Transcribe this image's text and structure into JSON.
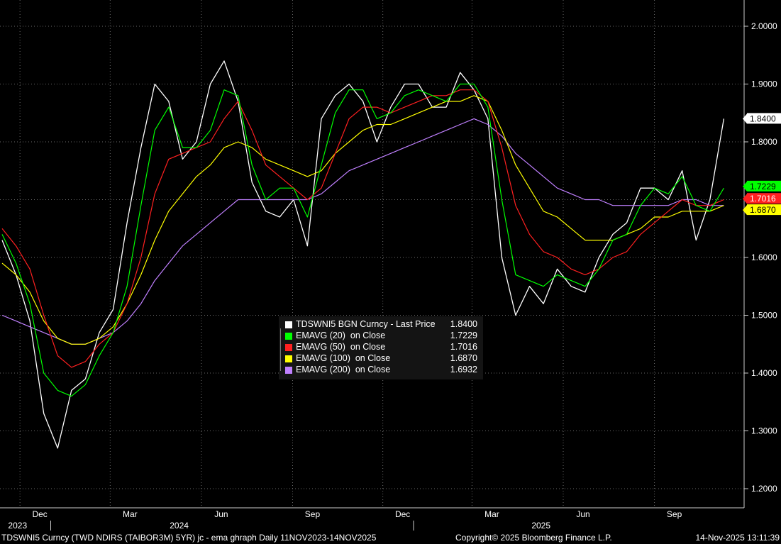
{
  "chart_data": {
    "type": "line",
    "title": "TDSWNI5 Curncy (TWD NDIRS (TAIBOR3M) 5YR) jc - ema ghraph Daily 11NOV2023-14NOV2025",
    "xlabel": "",
    "ylabel": "",
    "ylim": [
      1.18,
      2.04
    ],
    "yticks": [
      "1.2000",
      "1.3000",
      "1.4000",
      "1.5000",
      "1.6000",
      "1.7000",
      "1.8000",
      "1.9000",
      "2.0000"
    ],
    "x_tick_labels": [
      "Dec",
      "Mar",
      "Jun",
      "Sep",
      "Dec",
      "Mar",
      "Jun",
      "Sep"
    ],
    "x_year_labels": [
      "2023",
      "2024",
      "2025"
    ],
    "grid": true,
    "legend_position": "center",
    "x": [
      "2023-11-13",
      "2023-11-27",
      "2023-12-11",
      "2023-12-25",
      "2024-01-08",
      "2024-01-22",
      "2024-02-05",
      "2024-02-19",
      "2024-03-04",
      "2024-03-18",
      "2024-04-01",
      "2024-04-15",
      "2024-04-29",
      "2024-05-13",
      "2024-05-27",
      "2024-06-10",
      "2024-06-24",
      "2024-07-08",
      "2024-07-22",
      "2024-08-05",
      "2024-08-19",
      "2024-09-02",
      "2024-09-16",
      "2024-09-30",
      "2024-10-14",
      "2024-10-28",
      "2024-11-11",
      "2024-11-25",
      "2024-12-09",
      "2024-12-23",
      "2025-01-06",
      "2025-01-20",
      "2025-02-03",
      "2025-02-17",
      "2025-03-03",
      "2025-03-17",
      "2025-03-31",
      "2025-04-14",
      "2025-04-28",
      "2025-05-12",
      "2025-05-26",
      "2025-06-09",
      "2025-06-23",
      "2025-07-07",
      "2025-07-21",
      "2025-08-04",
      "2025-08-18",
      "2025-09-01",
      "2025-09-15",
      "2025-09-29",
      "2025-10-13",
      "2025-10-27",
      "2025-11-10"
    ],
    "series": [
      {
        "name": "TDSWNI5 BGN Curncy - Last Price",
        "color": "#ffffff",
        "last": "1.8400",
        "values": [
          1.63,
          1.57,
          1.49,
          1.33,
          1.27,
          1.37,
          1.39,
          1.47,
          1.51,
          1.66,
          1.79,
          1.9,
          1.87,
          1.77,
          1.8,
          1.9,
          1.94,
          1.87,
          1.73,
          1.68,
          1.67,
          1.7,
          1.62,
          1.84,
          1.88,
          1.9,
          1.87,
          1.8,
          1.86,
          1.9,
          1.9,
          1.86,
          1.86,
          1.92,
          1.89,
          1.84,
          1.6,
          1.5,
          1.55,
          1.52,
          1.58,
          1.55,
          1.54,
          1.6,
          1.64,
          1.66,
          1.72,
          1.72,
          1.7,
          1.75,
          1.63,
          1.7,
          1.84
        ]
      },
      {
        "name": "EMAVG (20)  on Close",
        "color": "#00ff00",
        "last": "1.7229",
        "values": [
          1.64,
          1.59,
          1.52,
          1.4,
          1.37,
          1.36,
          1.38,
          1.43,
          1.47,
          1.55,
          1.69,
          1.82,
          1.86,
          1.79,
          1.79,
          1.82,
          1.89,
          1.88,
          1.76,
          1.7,
          1.72,
          1.72,
          1.67,
          1.76,
          1.85,
          1.89,
          1.89,
          1.84,
          1.85,
          1.88,
          1.89,
          1.88,
          1.87,
          1.9,
          1.9,
          1.86,
          1.7,
          1.57,
          1.56,
          1.55,
          1.57,
          1.56,
          1.55,
          1.58,
          1.63,
          1.64,
          1.69,
          1.72,
          1.71,
          1.74,
          1.69,
          1.68,
          1.72
        ]
      },
      {
        "name": "EMAVG (50)  on Close",
        "color": "#ff2020",
        "last": "1.7016",
        "values": [
          1.65,
          1.62,
          1.58,
          1.5,
          1.43,
          1.41,
          1.42,
          1.45,
          1.47,
          1.52,
          1.6,
          1.71,
          1.77,
          1.78,
          1.79,
          1.8,
          1.84,
          1.87,
          1.82,
          1.76,
          1.74,
          1.72,
          1.7,
          1.72,
          1.78,
          1.84,
          1.86,
          1.86,
          1.85,
          1.86,
          1.87,
          1.88,
          1.88,
          1.89,
          1.89,
          1.87,
          1.79,
          1.69,
          1.64,
          1.61,
          1.6,
          1.58,
          1.57,
          1.58,
          1.6,
          1.61,
          1.64,
          1.66,
          1.68,
          1.7,
          1.69,
          1.69,
          1.7
        ]
      },
      {
        "name": "EMAVG (100)  on Close",
        "color": "#ffff00",
        "last": "1.6870",
        "values": [
          1.59,
          1.57,
          1.54,
          1.49,
          1.46,
          1.45,
          1.45,
          1.46,
          1.48,
          1.52,
          1.57,
          1.63,
          1.68,
          1.71,
          1.74,
          1.76,
          1.79,
          1.8,
          1.79,
          1.77,
          1.76,
          1.75,
          1.74,
          1.75,
          1.78,
          1.8,
          1.82,
          1.83,
          1.83,
          1.84,
          1.85,
          1.86,
          1.87,
          1.87,
          1.88,
          1.87,
          1.82,
          1.76,
          1.72,
          1.68,
          1.67,
          1.65,
          1.63,
          1.63,
          1.63,
          1.64,
          1.65,
          1.67,
          1.67,
          1.68,
          1.68,
          1.68,
          1.69
        ]
      },
      {
        "name": "EMAVG (200)  on Close",
        "color": "#c080ff",
        "last": "1.6932",
        "values": [
          1.5,
          1.49,
          1.48,
          1.47,
          1.46,
          1.45,
          1.45,
          1.46,
          1.47,
          1.49,
          1.52,
          1.56,
          1.59,
          1.62,
          1.64,
          1.66,
          1.68,
          1.7,
          1.7,
          1.7,
          1.7,
          1.7,
          1.7,
          1.71,
          1.73,
          1.75,
          1.76,
          1.77,
          1.78,
          1.79,
          1.8,
          1.81,
          1.82,
          1.83,
          1.84,
          1.83,
          1.81,
          1.78,
          1.76,
          1.74,
          1.72,
          1.71,
          1.7,
          1.7,
          1.69,
          1.69,
          1.69,
          1.69,
          1.69,
          1.7,
          1.7,
          1.69,
          1.69
        ]
      }
    ]
  },
  "footer": {
    "left": "TDSWNI5 Curncy (TWD NDIRS (TAIBOR3M) 5YR) jc - ema ghraph Daily 11NOV2023-14NOV2025",
    "center": "Copyright© 2025 Bloomberg Finance L.P.",
    "right": "14-Nov-2025 13:11:39"
  },
  "legend": {
    "rows": [
      {
        "label": "TDSWNI5 BGN Curncy - Last Price",
        "value": "1.8400",
        "color": "#ffffff"
      },
      {
        "label": "EMAVG (20)  on Close",
        "value": "1.7229",
        "color": "#00ff00"
      },
      {
        "label": "EMAVG (50)  on Close",
        "value": "1.7016",
        "color": "#ff2020"
      },
      {
        "label": "EMAVG (100)  on Close",
        "value": "1.6870",
        "color": "#ffff00"
      },
      {
        "label": "EMAVG (200)  on Close",
        "value": "1.6932",
        "color": "#c080ff"
      }
    ]
  }
}
